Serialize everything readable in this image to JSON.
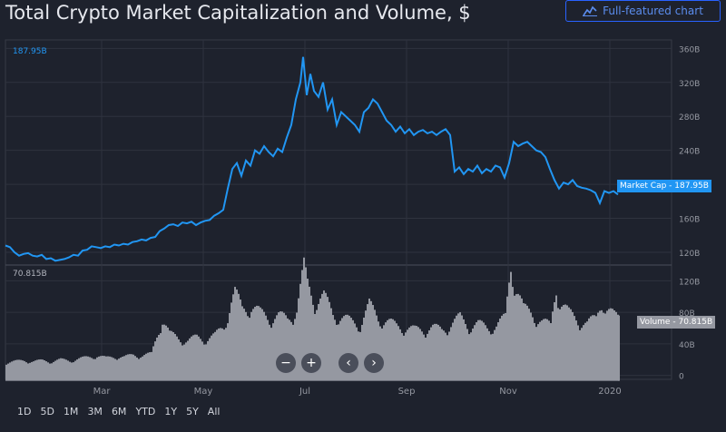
{
  "title": "Total Crypto Market Capitalization and Volume, $",
  "full_chart_button": "Full-featured chart",
  "full_chart_icon": "chart-line-icon",
  "range_buttons": [
    "1D",
    "5D",
    "1M",
    "3M",
    "6M",
    "YTD",
    "1Y",
    "5Y",
    "All"
  ],
  "nav_buttons": {
    "zoom_out": "−",
    "zoom_in": "+",
    "prev": "‹",
    "next": "›"
  },
  "colors": {
    "market_cap": "#2196f3",
    "volume": "#9598a1",
    "background": "#1e222d"
  },
  "chart_data": [
    {
      "type": "line",
      "title": "",
      "series_name": "Market Cap",
      "current_value_label": "187.95B",
      "y_tick_labels": [
        "360B",
        "320B",
        "280B",
        "240B",
        "200B",
        "160B",
        "120B"
      ],
      "y_ticks": [
        360,
        320,
        280,
        240,
        200,
        160,
        120
      ],
      "ylim": [
        105,
        370
      ],
      "unit": "B",
      "x_tick_labels": [
        "Mar",
        "May",
        "Jul",
        "Sep",
        "Nov",
        "2020"
      ],
      "grid": true,
      "points": [
        [
          0,
          128
        ],
        [
          5,
          126
        ],
        [
          10,
          120
        ],
        [
          15,
          116
        ],
        [
          20,
          118
        ],
        [
          25,
          119
        ],
        [
          30,
          116
        ],
        [
          35,
          115
        ],
        [
          40,
          117
        ],
        [
          45,
          112
        ],
        [
          50,
          113
        ],
        [
          55,
          110
        ],
        [
          60,
          111
        ],
        [
          65,
          112
        ],
        [
          70,
          114
        ],
        [
          75,
          117
        ],
        [
          80,
          116
        ],
        [
          85,
          122
        ],
        [
          90,
          123
        ],
        [
          95,
          127
        ],
        [
          100,
          126
        ],
        [
          105,
          125
        ],
        [
          110,
          127
        ],
        [
          115,
          126
        ],
        [
          120,
          129
        ],
        [
          125,
          128
        ],
        [
          130,
          130
        ],
        [
          135,
          129
        ],
        [
          140,
          132
        ],
        [
          145,
          133
        ],
        [
          150,
          135
        ],
        [
          155,
          134
        ],
        [
          160,
          137
        ],
        [
          165,
          138
        ],
        [
          170,
          145
        ],
        [
          175,
          148
        ],
        [
          180,
          152
        ],
        [
          185,
          153
        ],
        [
          190,
          151
        ],
        [
          195,
          155
        ],
        [
          200,
          154
        ],
        [
          205,
          156
        ],
        [
          210,
          152
        ],
        [
          215,
          155
        ],
        [
          220,
          157
        ],
        [
          225,
          158
        ],
        [
          230,
          163
        ],
        [
          235,
          166
        ],
        [
          240,
          170
        ],
        [
          245,
          195
        ],
        [
          250,
          218
        ],
        [
          255,
          225
        ],
        [
          260,
          210
        ],
        [
          265,
          228
        ],
        [
          270,
          222
        ],
        [
          275,
          240
        ],
        [
          280,
          236
        ],
        [
          285,
          245
        ],
        [
          290,
          238
        ],
        [
          295,
          233
        ],
        [
          300,
          242
        ],
        [
          305,
          238
        ],
        [
          310,
          255
        ],
        [
          315,
          270
        ],
        [
          320,
          300
        ],
        [
          325,
          320
        ],
        [
          328,
          350
        ],
        [
          332,
          305
        ],
        [
          336,
          330
        ],
        [
          340,
          310
        ],
        [
          345,
          303
        ],
        [
          350,
          320
        ],
        [
          355,
          288
        ],
        [
          360,
          300
        ],
        [
          365,
          270
        ],
        [
          370,
          285
        ],
        [
          375,
          280
        ],
        [
          380,
          275
        ],
        [
          385,
          270
        ],
        [
          390,
          262
        ],
        [
          395,
          285
        ],
        [
          400,
          290
        ],
        [
          405,
          300
        ],
        [
          410,
          295
        ],
        [
          415,
          285
        ],
        [
          420,
          275
        ],
        [
          425,
          270
        ],
        [
          430,
          262
        ],
        [
          435,
          268
        ],
        [
          440,
          260
        ],
        [
          445,
          265
        ],
        [
          450,
          258
        ],
        [
          455,
          262
        ],
        [
          460,
          264
        ],
        [
          465,
          260
        ],
        [
          470,
          262
        ],
        [
          475,
          258
        ],
        [
          480,
          262
        ],
        [
          485,
          265
        ],
        [
          490,
          258
        ],
        [
          495,
          215
        ],
        [
          500,
          220
        ],
        [
          505,
          212
        ],
        [
          510,
          218
        ],
        [
          515,
          215
        ],
        [
          520,
          222
        ],
        [
          525,
          213
        ],
        [
          530,
          218
        ],
        [
          535,
          215
        ],
        [
          540,
          222
        ],
        [
          545,
          220
        ],
        [
          550,
          208
        ],
        [
          555,
          225
        ],
        [
          560,
          250
        ],
        [
          565,
          245
        ],
        [
          570,
          248
        ],
        [
          575,
          250
        ],
        [
          580,
          245
        ],
        [
          585,
          240
        ],
        [
          590,
          238
        ],
        [
          595,
          232
        ],
        [
          600,
          218
        ],
        [
          605,
          205
        ],
        [
          610,
          195
        ],
        [
          615,
          202
        ],
        [
          620,
          200
        ],
        [
          625,
          205
        ],
        [
          630,
          198
        ],
        [
          635,
          196
        ],
        [
          640,
          195
        ],
        [
          645,
          193
        ],
        [
          650,
          190
        ],
        [
          655,
          178
        ],
        [
          660,
          192
        ],
        [
          665,
          190
        ],
        [
          670,
          192
        ],
        [
          675,
          188
        ]
      ]
    },
    {
      "type": "bar",
      "title": "",
      "series_name": "Volume",
      "current_value_label": "70.815B",
      "y_tick_labels": [
        "120B",
        "80B",
        "40B",
        "0"
      ],
      "y_ticks": [
        120,
        80,
        40,
        0
      ],
      "ylim": [
        -5,
        140
      ],
      "unit": "B",
      "grid": true,
      "points": [
        [
          0,
          16
        ],
        [
          10,
          17
        ],
        [
          20,
          18
        ],
        [
          30,
          17
        ],
        [
          40,
          18
        ],
        [
          50,
          17
        ],
        [
          60,
          19
        ],
        [
          70,
          18
        ],
        [
          80,
          20
        ],
        [
          90,
          22
        ],
        [
          100,
          24
        ],
        [
          110,
          21
        ],
        [
          120,
          23
        ],
        [
          130,
          22
        ],
        [
          140,
          25
        ],
        [
          150,
          24
        ],
        [
          160,
          26
        ],
        [
          168,
          55
        ],
        [
          172,
          70
        ],
        [
          180,
          50
        ],
        [
          190,
          45
        ],
        [
          200,
          42
        ],
        [
          210,
          46
        ],
        [
          220,
          44
        ],
        [
          230,
          48
        ],
        [
          240,
          60
        ],
        [
          248,
          90
        ],
        [
          252,
          100
        ],
        [
          260,
          80
        ],
        [
          270,
          85
        ],
        [
          280,
          75
        ],
        [
          290,
          70
        ],
        [
          300,
          72
        ],
        [
          310,
          68
        ],
        [
          320,
          80
        ],
        [
          328,
          130
        ],
        [
          332,
          110
        ],
        [
          340,
          90
        ],
        [
          350,
          95
        ],
        [
          360,
          75
        ],
        [
          370,
          70
        ],
        [
          380,
          65
        ],
        [
          390,
          62
        ],
        [
          400,
          85
        ],
        [
          410,
          70
        ],
        [
          420,
          65
        ],
        [
          430,
          60
        ],
        [
          440,
          58
        ],
        [
          450,
          55
        ],
        [
          460,
          56
        ],
        [
          470,
          58
        ],
        [
          480,
          55
        ],
        [
          490,
          62
        ],
        [
          500,
          70
        ],
        [
          510,
          60
        ],
        [
          520,
          62
        ],
        [
          530,
          58
        ],
        [
          540,
          60
        ],
        [
          550,
          70
        ],
        [
          556,
          135
        ],
        [
          560,
          115
        ],
        [
          570,
          80
        ],
        [
          580,
          75
        ],
        [
          590,
          65
        ],
        [
          600,
          60
        ],
        [
          606,
          110
        ],
        [
          610,
          90
        ],
        [
          620,
          75
        ],
        [
          630,
          68
        ],
        [
          640,
          62
        ],
        [
          650,
          70
        ],
        [
          656,
          95
        ],
        [
          660,
          80
        ],
        [
          670,
          72
        ],
        [
          675,
          71
        ]
      ]
    }
  ]
}
